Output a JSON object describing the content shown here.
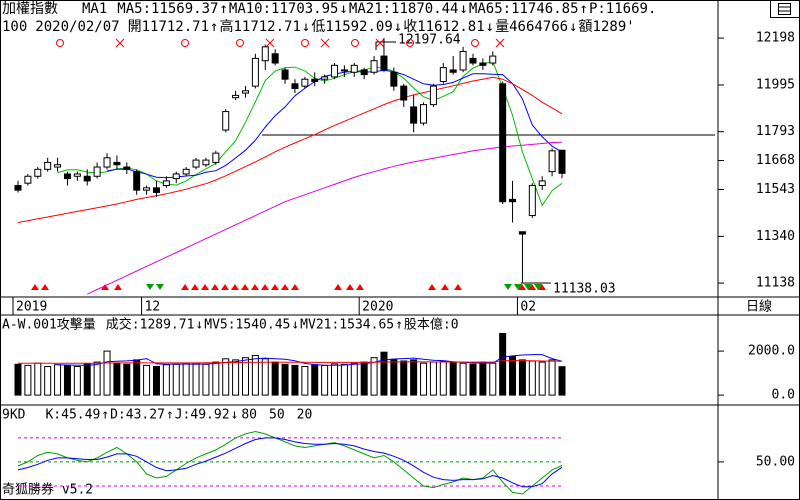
{
  "chart_data": [
    {
      "type": "candlestick",
      "title": "加權指數",
      "subtitle": "MA1",
      "indicator_labels": [
        {
          "text": "MA5:11569.37",
          "color": "#00a000"
        },
        {
          "text": "↑",
          "color": "#00a000"
        },
        {
          "text": "MA10:11703.95",
          "color": "#0000ff"
        },
        {
          "text": "↓",
          "color": "#0000ff"
        },
        {
          "text": "MA21:11870.44",
          "color": "#ff0000"
        },
        {
          "text": "↓",
          "color": "#ff0000"
        },
        {
          "text": "MA65:11746.85",
          "color": "#e000e0"
        },
        {
          "text": "↑",
          "color": "#e000e0"
        },
        {
          "text": "P:11669.",
          "color": "#e000e0"
        }
      ],
      "quote_labels": [
        {
          "text": "100",
          "color": "#000000"
        },
        {
          "text": "2020/02/07",
          "color": "#000000"
        },
        {
          "text": "開11712.71",
          "color": "#000000"
        },
        {
          "text": "↑",
          "color": "#000000"
        },
        {
          "text": "高11712.71",
          "color": "#000000"
        },
        {
          "text": "↓",
          "color": "#000000"
        },
        {
          "text": "低11592.09",
          "color": "#000000"
        },
        {
          "text": "↓",
          "color": "#000000"
        },
        {
          "text": "收11612.81",
          "color": "#000000"
        },
        {
          "text": "↓",
          "color": "#000000"
        },
        {
          "text": "量4664766",
          "color": "#000000"
        },
        {
          "text": "↓",
          "color": "#000000"
        },
        {
          "text": "額1289'",
          "color": "#000000"
        }
      ],
      "categories": [
        "2019",
        null,
        null,
        null,
        null,
        null,
        null,
        null,
        null,
        null,
        null,
        null,
        null,
        "12",
        null,
        null,
        null,
        null,
        null,
        null,
        null,
        null,
        null,
        null,
        null,
        null,
        null,
        null,
        null,
        null,
        null,
        null,
        null,
        null,
        null,
        "2020",
        null,
        null,
        null,
        null,
        null,
        null,
        null,
        null,
        null,
        null,
        null,
        null,
        null,
        null,
        null,
        "02",
        null,
        null,
        null,
        null
      ],
      "ohlc": [
        [
          11560,
          11580,
          11530,
          11540
        ],
        [
          11570,
          11610,
          11560,
          11600
        ],
        [
          11600,
          11640,
          11590,
          11630
        ],
        [
          11630,
          11680,
          11620,
          11660
        ],
        [
          11640,
          11680,
          11620,
          11650
        ],
        [
          11610,
          11620,
          11560,
          11590
        ],
        [
          11600,
          11620,
          11580,
          11610
        ],
        [
          11600,
          11630,
          11560,
          11580
        ],
        [
          11600,
          11660,
          11590,
          11640
        ],
        [
          11640,
          11700,
          11630,
          11680
        ],
        [
          11660,
          11690,
          11630,
          11650
        ],
        [
          11640,
          11660,
          11610,
          11630
        ],
        [
          11620,
          11630,
          11520,
          11540
        ],
        [
          11540,
          11560,
          11520,
          11550
        ],
        [
          11550,
          11580,
          11510,
          11530
        ],
        [
          11560,
          11600,
          11550,
          11580
        ],
        [
          11590,
          11620,
          11570,
          11610
        ],
        [
          11610,
          11640,
          11600,
          11630
        ],
        [
          11640,
          11680,
          11630,
          11670
        ],
        [
          11650,
          11680,
          11640,
          11670
        ],
        [
          11660,
          11710,
          11650,
          11700
        ],
        [
          11800,
          11890,
          11790,
          11880
        ],
        [
          11940,
          11970,
          11930,
          11950
        ],
        [
          11960,
          11990,
          11940,
          11970
        ],
        [
          11990,
          12130,
          11980,
          12110
        ],
        [
          12100,
          12170,
          12060,
          12160
        ],
        [
          12130,
          12150,
          12080,
          12090
        ],
        [
          12060,
          12070,
          12000,
          12020
        ],
        [
          12000,
          12020,
          11960,
          11980
        ],
        [
          11990,
          12030,
          11980,
          12020
        ],
        [
          12020,
          12050,
          11990,
          12010
        ],
        [
          12020,
          12040,
          12000,
          12030
        ],
        [
          12030,
          12090,
          12020,
          12080
        ],
        [
          12060,
          12080,
          12030,
          12060
        ],
        [
          12050,
          12090,
          12030,
          12080
        ],
        [
          12060,
          12070,
          12020,
          12040
        ],
        [
          12050,
          12120,
          12040,
          12100
        ],
        [
          12120,
          12197.64,
          12050,
          12060
        ],
        [
          12050,
          12070,
          11970,
          11990
        ],
        [
          11990,
          12000,
          11900,
          11930
        ],
        [
          11900,
          11950,
          11790,
          11830
        ],
        [
          11830,
          11920,
          11820,
          11910
        ],
        [
          11910,
          12000,
          11900,
          11990
        ],
        [
          12010,
          12090,
          12000,
          12070
        ],
        [
          12060,
          12120,
          12040,
          12050
        ],
        [
          12060,
          12160,
          12050,
          12140
        ],
        [
          12110,
          12130,
          12080,
          12090
        ],
        [
          12090,
          12110,
          12060,
          12080
        ],
        [
          12090,
          12140,
          12080,
          12120
        ],
        [
          12000,
          12010,
          11480,
          11490
        ],
        [
          11500,
          11580,
          11400,
          11490
        ],
        [
          11360,
          11360,
          11138.03,
          11350
        ],
        [
          11430,
          11570,
          11420,
          11560
        ],
        [
          11560,
          11600,
          11540,
          11580
        ],
        [
          11620,
          11720,
          11600,
          11710
        ],
        [
          11712.71,
          11712.71,
          11592.09,
          11612.81
        ]
      ],
      "up_color": "#ffffff",
      "down_color": "#000000",
      "lines": [
        {
          "color": "#00c000",
          "values": [
            null,
            null,
            null,
            null,
            11616,
            11628,
            11628,
            11618,
            11614,
            11620,
            11632,
            11636,
            11628,
            11610,
            11580,
            11566,
            11562,
            11580,
            11608,
            11632,
            11656,
            11706,
            11754,
            11834,
            11922,
            12014,
            12056,
            12070,
            12072,
            12056,
            12024,
            12012,
            12024,
            12040,
            12052,
            12060,
            12072,
            12068,
            12054,
            12024,
            11982,
            11944,
            11928,
            11946,
            11966,
            12032,
            12068,
            12086,
            12096,
            11984,
            11864,
            11706,
            11590,
            11474,
            11538,
            11569.37
          ]
        },
        {
          "color": "#0000ff",
          "values": [
            null,
            null,
            null,
            null,
            null,
            null,
            null,
            null,
            null,
            11623,
            11630,
            11631,
            11620,
            11609,
            11596,
            11594,
            11597,
            11601,
            11604,
            11617,
            11624,
            11647,
            11679,
            11713,
            11756,
            11813,
            11862,
            11900,
            11948,
            11980,
            12010,
            12032,
            12042,
            12050,
            12055,
            12050,
            12053,
            12058,
            12053,
            12040,
            12020,
            12000,
            11994,
            11997,
            12006,
            12025,
            12044,
            12044,
            12041,
            12040,
            12001,
            11935,
            11822,
            11771,
            11730,
            11703.95
          ]
        },
        {
          "color": "#ff0000",
          "values": [
            11400,
            11408,
            11416,
            11424,
            11432,
            11440,
            11448,
            11456,
            11464,
            11472,
            11480,
            11490,
            11500,
            11508,
            11516,
            11524,
            11534,
            11544,
            11556,
            11568,
            11584,
            11602,
            11622,
            11642,
            11662,
            11684,
            11706,
            11726,
            11744,
            11762,
            11780,
            11800,
            11820,
            11838,
            11856,
            11874,
            11892,
            11910,
            11926,
            11940,
            11952,
            11962,
            11972,
            11982,
            11992,
            12002,
            12012,
            12020,
            12028,
            12020,
            12000,
            11976,
            11950,
            11920,
            11896,
            11870.44
          ]
        },
        {
          "color": "#e000e0",
          "values": [
            null,
            null,
            null,
            null,
            null,
            null,
            null,
            11090,
            11110,
            11130,
            11150,
            11170,
            11190,
            11210,
            11230,
            11250,
            11270,
            11290,
            11310,
            11330,
            11350,
            11370,
            11390,
            11410,
            11430,
            11450,
            11470,
            11490,
            11505,
            11520,
            11535,
            11550,
            11565,
            11580,
            11595,
            11608,
            11620,
            11632,
            11643,
            11653,
            11662,
            11670,
            11678,
            11686,
            11694,
            11702,
            11710,
            11716,
            11722,
            11727,
            11731,
            11734,
            11738,
            11742,
            11746,
            11746.85
          ]
        }
      ],
      "ylim": [
        11082,
        12354
      ],
      "yticks": [
        12198,
        11995,
        11793,
        11668,
        11543,
        11340,
        11138
      ],
      "annotations": [
        "12197.64",
        "11138.03"
      ]
    },
    {
      "type": "bar",
      "title": "A-W.001攻擊量",
      "indicator_labels": [
        {
          "text": "成交:1289.71",
          "color": "#00a000"
        },
        {
          "text": "↓",
          "color": "#0000ff"
        },
        {
          "text": "MV5:1540.45",
          "color": "#0000ff"
        },
        {
          "text": "↓",
          "color": "#0000ff"
        },
        {
          "text": "MV21:1534.65",
          "color": "#ff0000"
        },
        {
          "text": "↑",
          "color": "#ff0000"
        },
        {
          "text": "股本億:0",
          "color": "#e000e0"
        }
      ],
      "values": [
        1400,
        1350,
        1450,
        1300,
        1380,
        1350,
        1300,
        1420,
        1500,
        2000,
        1450,
        1400,
        1600,
        1350,
        1300,
        1380,
        1400,
        1420,
        1450,
        1400,
        1500,
        1650,
        1600,
        1700,
        1800,
        1650,
        1500,
        1400,
        1350,
        1300,
        1380,
        1350,
        1420,
        1400,
        1450,
        1500,
        1700,
        1950,
        1600,
        1550,
        1600,
        1450,
        1500,
        1550,
        1500,
        1450,
        1400,
        1500,
        1450,
        2800,
        1750,
        1600,
        1550,
        1500,
        1600,
        1289.71
      ],
      "lines": [
        {
          "color": "#0000ff",
          "values": [
            null,
            null,
            null,
            null,
            1377,
            1366,
            1360,
            1358,
            1390,
            1514,
            1534,
            1554,
            1590,
            1660,
            1420,
            1406,
            1410,
            1410,
            1404,
            1414,
            1434,
            1484,
            1524,
            1590,
            1650,
            1680,
            1650,
            1630,
            1560,
            1440,
            1386,
            1358,
            1360,
            1370,
            1400,
            1424,
            1494,
            1600,
            1640,
            1660,
            1680,
            1630,
            1580,
            1570,
            1520,
            1490,
            1460,
            1460,
            1460,
            1720,
            1780,
            1820,
            1840,
            1840,
            1660,
            1540.45
          ]
        },
        {
          "color": "#ff0000",
          "values": [
            1450,
            1450,
            1452,
            1450,
            1448,
            1446,
            1445,
            1447,
            1450,
            1460,
            1462,
            1462,
            1466,
            1465,
            1463,
            1462,
            1462,
            1463,
            1465,
            1466,
            1470,
            1475,
            1480,
            1485,
            1492,
            1496,
            1498,
            1497,
            1494,
            1490,
            1488,
            1486,
            1484,
            1484,
            1486,
            1490,
            1496,
            1505,
            1508,
            1510,
            1512,
            1510,
            1508,
            1506,
            1504,
            1500,
            1498,
            1500,
            1500,
            1560,
            1566,
            1570,
            1562,
            1550,
            1545,
            1534.65
          ]
        }
      ],
      "ylim": [
        -450,
        3640
      ],
      "yticks": [
        {
          "value": 2000,
          "label": "2000.0"
        },
        {
          "value": 0,
          "label": "0.0"
        }
      ]
    },
    {
      "type": "line",
      "title": "9KD",
      "indicator_labels": [
        {
          "text": "K:45.49",
          "color": "#00a000"
        },
        {
          "text": "↑",
          "color": "#00a000"
        },
        {
          "text": "D:43.27",
          "color": "#0000ff"
        },
        {
          "text": "↑",
          "color": "#0000ff"
        },
        {
          "text": "J:49.92",
          "color": "#e000e0"
        },
        {
          "text": "↓",
          "color": "#ff0000"
        }
      ],
      "series": [
        {
          "color": "#00a000",
          "values": [
            45,
            50,
            58,
            62,
            60,
            55,
            52,
            50,
            55,
            62,
            68,
            60,
            50,
            35,
            30,
            32,
            40,
            48,
            55,
            60,
            65,
            72,
            80,
            85,
            88,
            85,
            80,
            75,
            70,
            68,
            70,
            72,
            74,
            70,
            65,
            60,
            55,
            58,
            50,
            40,
            30,
            20,
            18,
            22,
            25,
            30,
            28,
            30,
            40,
            25,
            12,
            10,
            20,
            30,
            40,
            45.49
          ]
        },
        {
          "color": "#0000ff",
          "values": [
            40,
            43,
            47,
            52,
            55,
            55,
            54,
            53,
            53,
            56,
            60,
            60,
            57,
            50,
            43,
            39,
            40,
            42,
            47,
            51,
            56,
            61,
            67,
            73,
            78,
            80,
            80,
            78,
            75,
            73,
            72,
            72,
            73,
            72,
            70,
            66,
            63,
            61,
            57,
            52,
            45,
            37,
            31,
            28,
            27,
            28,
            28,
            29,
            33,
            30,
            24,
            19,
            19,
            23,
            35,
            43.27
          ]
        }
      ],
      "reference_lines": [
        {
          "value": 80,
          "color": "#e000e0"
        },
        {
          "value": 50,
          "color": "#00a000"
        },
        {
          "value": 20,
          "color": "#e000e0"
        }
      ],
      "ylim": [
        2.5,
        121
      ],
      "yticks": [
        {
          "value": 50,
          "label": "50.00"
        }
      ]
    }
  ],
  "period": "日線",
  "footer": "奇狐勝券 v5.2"
}
